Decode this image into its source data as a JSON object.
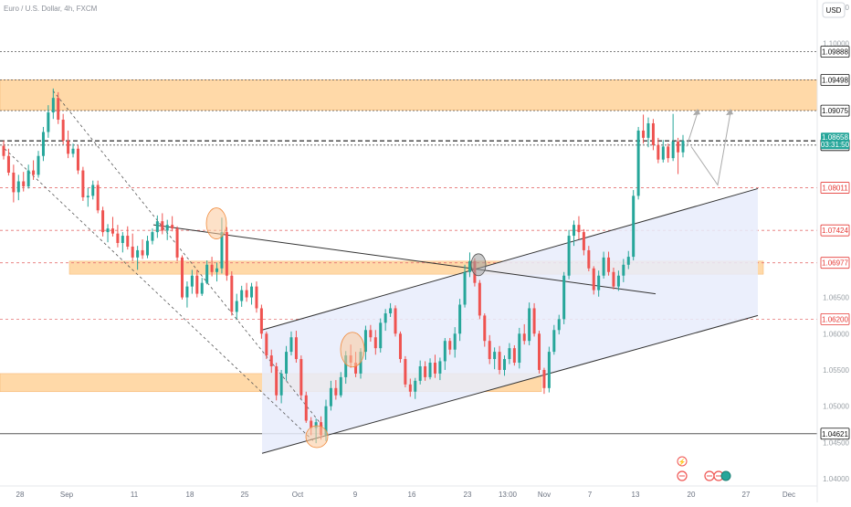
{
  "header": {
    "symbol_title": "Euro / U.S. Dollar, 4h, FXCM",
    "currency_button": "USD"
  },
  "chart_data": {
    "type": "candlestick",
    "title": "Euro / U.S. Dollar, 4h, FXCM",
    "currency": "USD",
    "ylim": [
      1.039,
      1.106
    ],
    "y_ticks": [
      {
        "value": 1.105,
        "label": "1.10500"
      },
      {
        "value": 1.1,
        "label": "1.10000"
      },
      {
        "value": 1.065,
        "label": "1.06500"
      },
      {
        "value": 1.06,
        "label": "1.06000"
      },
      {
        "value": 1.055,
        "label": "1.05500"
      },
      {
        "value": 1.05,
        "label": "1.05000"
      },
      {
        "value": 1.045,
        "label": "1.04500"
      },
      {
        "value": 1.04,
        "label": "1.04000"
      }
    ],
    "x_ticks": [
      "28",
      "Sep",
      "11",
      "18",
      "25",
      "Oct",
      "9",
      "16",
      "23",
      "13:00",
      "Nov",
      "7",
      "13",
      "20",
      "27",
      "Dec"
    ],
    "level_tags": [
      {
        "value": 1.09888,
        "label": "1.09888",
        "color": "#111111"
      },
      {
        "value": 1.09498,
        "label": "1.09498",
        "color": "#111111"
      },
      {
        "value": 1.09075,
        "label": "1.09075",
        "color": "#111111"
      },
      {
        "value": 1.086,
        "label": "1.08600",
        "color": "#111111"
      },
      {
        "value": 1.08011,
        "label": "1.08011",
        "color": "#e53935"
      },
      {
        "value": 1.07424,
        "label": "1.07424",
        "color": "#e53935"
      },
      {
        "value": 1.06977,
        "label": "1.06977",
        "color": "#e53935"
      },
      {
        "value": 1.062,
        "label": "1.06200",
        "color": "#e53935"
      },
      {
        "value": 1.04621,
        "label": "1.04621",
        "color": "#111111"
      }
    ],
    "last_price": {
      "value": 1.08658,
      "label": "1.08658",
      "countdown": "03:31:50",
      "color": "#26a69a"
    },
    "zones": [
      {
        "from": 1.0908,
        "to": 1.095,
        "color": "#ffd59e"
      },
      {
        "from": 1.0682,
        "to": 1.07,
        "color": "#ffd59e"
      },
      {
        "from": 1.052,
        "to": 1.0545,
        "color": "#ffd59e"
      }
    ],
    "candles": [
      [
        1.0859,
        1.0866,
        1.084,
        1.0845
      ],
      [
        1.0845,
        1.0855,
        1.0818,
        1.0822
      ],
      [
        1.0822,
        1.0833,
        1.0781,
        1.0795
      ],
      [
        1.0795,
        1.0819,
        1.0784,
        1.081
      ],
      [
        1.081,
        1.0823,
        1.0796,
        1.0803
      ],
      [
        1.0803,
        1.0833,
        1.08,
        1.0825
      ],
      [
        1.0825,
        1.0839,
        1.0812,
        1.0819
      ],
      [
        1.0819,
        1.0852,
        1.0815,
        1.0845
      ],
      [
        1.0845,
        1.0885,
        1.0838,
        1.0878
      ],
      [
        1.0878,
        1.0915,
        1.087,
        1.0905
      ],
      [
        1.0905,
        1.0938,
        1.0896,
        1.0925
      ],
      [
        1.0925,
        1.0933,
        1.0889,
        1.0895
      ],
      [
        1.0895,
        1.0903,
        1.0861,
        1.0866
      ],
      [
        1.0866,
        1.088,
        1.0842,
        1.0848
      ],
      [
        1.0848,
        1.0862,
        1.0843,
        1.0855
      ],
      [
        1.0855,
        1.086,
        1.082,
        1.0825
      ],
      [
        1.0825,
        1.083,
        1.0783,
        1.0788
      ],
      [
        1.0788,
        1.0801,
        1.0775,
        1.079
      ],
      [
        1.079,
        1.0811,
        1.0785,
        1.0805
      ],
      [
        1.0805,
        1.0811,
        1.0766,
        1.077
      ],
      [
        1.077,
        1.0775,
        1.0734,
        1.074
      ],
      [
        1.074,
        1.0751,
        1.0726,
        1.0745
      ],
      [
        1.0745,
        1.0761,
        1.0734,
        1.0738
      ],
      [
        1.0738,
        1.075,
        1.0719,
        1.0725
      ],
      [
        1.0725,
        1.074,
        1.0712,
        1.0735
      ],
      [
        1.0735,
        1.0748,
        1.0716,
        1.072
      ],
      [
        1.072,
        1.0738,
        1.07,
        1.0705
      ],
      [
        1.0705,
        1.0721,
        1.0688,
        1.0715
      ],
      [
        1.0715,
        1.073,
        1.0703,
        1.0708
      ],
      [
        1.0708,
        1.0735,
        1.0704,
        1.0728
      ],
      [
        1.0728,
        1.0745,
        1.0723,
        1.074
      ],
      [
        1.074,
        1.0763,
        1.0732,
        1.0755
      ],
      [
        1.0755,
        1.0766,
        1.0737,
        1.0742
      ],
      [
        1.0742,
        1.0757,
        1.0729,
        1.075
      ],
      [
        1.075,
        1.0762,
        1.0741,
        1.0745
      ],
      [
        1.0745,
        1.0748,
        1.07,
        1.0705
      ],
      [
        1.0705,
        1.0708,
        1.0647,
        1.065
      ],
      [
        1.065,
        1.0672,
        1.0636,
        1.0665
      ],
      [
        1.0665,
        1.0688,
        1.0655,
        1.068
      ],
      [
        1.068,
        1.0688,
        1.065,
        1.0655
      ],
      [
        1.0655,
        1.0677,
        1.0652,
        1.067
      ],
      [
        1.067,
        1.0701,
        1.0668,
        1.0695
      ],
      [
        1.0695,
        1.0706,
        1.0679,
        1.0685
      ],
      [
        1.0685,
        1.0698,
        1.0672,
        1.069
      ],
      [
        1.069,
        1.076,
        1.0683,
        1.074
      ],
      [
        1.074,
        1.0747,
        1.0673,
        1.068
      ],
      [
        1.068,
        1.0686,
        1.0625,
        1.063
      ],
      [
        1.063,
        1.0655,
        1.0619,
        1.0645
      ],
      [
        1.0645,
        1.0666,
        1.0637,
        1.066
      ],
      [
        1.066,
        1.067,
        1.0644,
        1.065
      ],
      [
        1.065,
        1.067,
        1.064,
        1.0665
      ],
      [
        1.0665,
        1.0672,
        1.0629,
        1.0635
      ],
      [
        1.0635,
        1.064,
        1.0593,
        1.06
      ],
      [
        1.06,
        1.0603,
        1.0565,
        1.057
      ],
      [
        1.057,
        1.0578,
        1.0546,
        1.0555
      ],
      [
        1.0555,
        1.056,
        1.0508,
        1.0515
      ],
      [
        1.0515,
        1.055,
        1.0504,
        1.0545
      ],
      [
        1.0545,
        1.0583,
        1.0535,
        1.0575
      ],
      [
        1.0575,
        1.0603,
        1.057,
        1.0595
      ],
      [
        1.0595,
        1.0604,
        1.056,
        1.0565
      ],
      [
        1.0565,
        1.057,
        1.051,
        1.0515
      ],
      [
        1.0515,
        1.052,
        1.0477,
        1.048
      ],
      [
        1.048,
        1.0485,
        1.046,
        1.047
      ],
      [
        1.047,
        1.0483,
        1.0449,
        1.0478
      ],
      [
        1.0478,
        1.0486,
        1.0454,
        1.046
      ],
      [
        1.046,
        1.0509,
        1.0452,
        1.05
      ],
      [
        1.05,
        1.0535,
        1.0494,
        1.0525
      ],
      [
        1.0525,
        1.0536,
        1.0509,
        1.0515
      ],
      [
        1.0515,
        1.0547,
        1.0512,
        1.054
      ],
      [
        1.054,
        1.0576,
        1.0531,
        1.057
      ],
      [
        1.057,
        1.0585,
        1.0553,
        1.056
      ],
      [
        1.056,
        1.0575,
        1.054,
        1.0545
      ],
      [
        1.0545,
        1.058,
        1.0538,
        1.0575
      ],
      [
        1.0575,
        1.0611,
        1.0564,
        1.0605
      ],
      [
        1.0605,
        1.0612,
        1.0589,
        1.0595
      ],
      [
        1.0595,
        1.0605,
        1.0571,
        1.058
      ],
      [
        1.058,
        1.0621,
        1.0574,
        1.0615
      ],
      [
        1.0615,
        1.0634,
        1.0604,
        1.0628
      ],
      [
        1.0628,
        1.0642,
        1.0623,
        1.0635
      ],
      [
        1.0635,
        1.0639,
        1.0596,
        1.06
      ],
      [
        1.06,
        1.0603,
        1.056,
        1.0565
      ],
      [
        1.0565,
        1.0569,
        1.0526,
        1.053
      ],
      [
        1.053,
        1.0538,
        1.0513,
        1.052
      ],
      [
        1.052,
        1.0539,
        1.051,
        1.0535
      ],
      [
        1.0535,
        1.0563,
        1.053,
        1.0555
      ],
      [
        1.0555,
        1.0562,
        1.0535,
        1.054
      ],
      [
        1.054,
        1.0566,
        1.0537,
        1.056
      ],
      [
        1.056,
        1.0571,
        1.0539,
        1.0545
      ],
      [
        1.0545,
        1.0567,
        1.0536,
        1.0562
      ],
      [
        1.0562,
        1.0594,
        1.055,
        1.059
      ],
      [
        1.059,
        1.0594,
        1.0571,
        1.0578
      ],
      [
        1.0578,
        1.0609,
        1.0567,
        1.06
      ],
      [
        1.06,
        1.0648,
        1.059,
        1.064
      ],
      [
        1.064,
        1.0695,
        1.0636,
        1.0685
      ],
      [
        1.0685,
        1.0712,
        1.0678,
        1.07
      ],
      [
        1.07,
        1.0704,
        1.0665,
        1.067
      ],
      [
        1.067,
        1.0674,
        1.062,
        1.0625
      ],
      [
        1.0625,
        1.0628,
        1.0582,
        1.059
      ],
      [
        1.059,
        1.0598,
        1.0558,
        1.0565
      ],
      [
        1.0565,
        1.0581,
        1.0551,
        1.0575
      ],
      [
        1.0575,
        1.0583,
        1.0544,
        1.055
      ],
      [
        1.055,
        1.057,
        1.0542,
        1.0565
      ],
      [
        1.0565,
        1.0587,
        1.0558,
        1.058
      ],
      [
        1.058,
        1.0584,
        1.0556,
        1.056
      ],
      [
        1.056,
        1.0608,
        1.0552,
        1.06
      ],
      [
        1.06,
        1.0613,
        1.0585,
        1.059
      ],
      [
        1.059,
        1.0643,
        1.0584,
        1.0635
      ],
      [
        1.0635,
        1.0642,
        1.0596,
        1.06
      ],
      [
        1.06,
        1.0604,
        1.0545,
        1.055
      ],
      [
        1.055,
        1.0553,
        1.0517,
        1.0525
      ],
      [
        1.0525,
        1.0582,
        1.0519,
        1.0575
      ],
      [
        1.0575,
        1.0612,
        1.0571,
        1.0605
      ],
      [
        1.0605,
        1.0626,
        1.0599,
        1.062
      ],
      [
        1.062,
        1.0685,
        1.0613,
        1.068
      ],
      [
        1.068,
        1.0743,
        1.0675,
        1.0735
      ],
      [
        1.0735,
        1.0756,
        1.0721,
        1.075
      ],
      [
        1.075,
        1.0762,
        1.073,
        1.074
      ],
      [
        1.074,
        1.0744,
        1.0708,
        1.0715
      ],
      [
        1.0715,
        1.0721,
        1.0686,
        1.069
      ],
      [
        1.069,
        1.0693,
        1.0654,
        1.066
      ],
      [
        1.066,
        1.0687,
        1.0651,
        1.068
      ],
      [
        1.068,
        1.0713,
        1.0676,
        1.0705
      ],
      [
        1.0705,
        1.0713,
        1.068,
        1.0685
      ],
      [
        1.0685,
        1.0691,
        1.0661,
        1.0665
      ],
      [
        1.0665,
        1.0687,
        1.0659,
        1.068
      ],
      [
        1.068,
        1.0703,
        1.0671,
        1.0695
      ],
      [
        1.0695,
        1.0714,
        1.0689,
        1.0706
      ],
      [
        1.0706,
        1.0798,
        1.0701,
        1.079
      ],
      [
        1.079,
        1.0885,
        1.0785,
        1.088
      ],
      [
        1.088,
        1.0902,
        1.0862,
        1.087
      ],
      [
        1.087,
        1.0898,
        1.0857,
        1.089
      ],
      [
        1.089,
        1.0896,
        1.0853,
        1.086
      ],
      [
        1.086,
        1.087,
        1.0835,
        1.084
      ],
      [
        1.084,
        1.0867,
        1.0836,
        1.0858
      ],
      [
        1.0858,
        1.0862,
        1.0836,
        1.0842
      ],
      [
        1.0842,
        1.0903,
        1.0838,
        1.0865
      ],
      [
        1.0865,
        1.087,
        1.082,
        1.085
      ],
      [
        1.085,
        1.0874,
        1.0843,
        1.0866
      ]
    ],
    "annotations": {
      "projection_path": "dashed projection arrows up toward 1.0908 and 1.0988",
      "highlighted_turning_points": 5
    }
  }
}
